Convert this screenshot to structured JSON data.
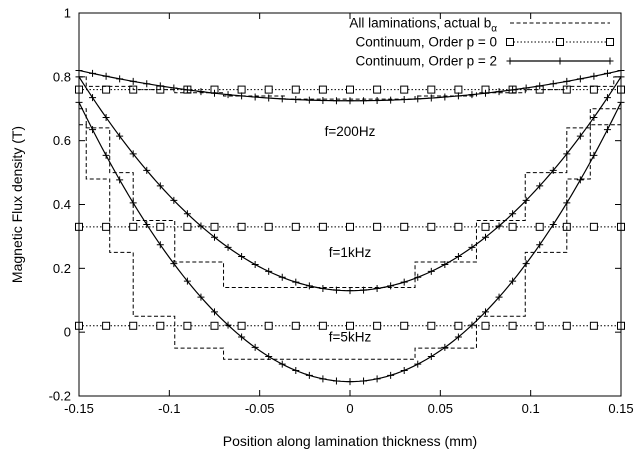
{
  "chart_data": {
    "type": "line",
    "xlabel": "Position along lamination thickness (mm)",
    "ylabel": "Magnetic Flux density (T)",
    "xlim": [
      -0.15,
      0.15
    ],
    "ylim": [
      -0.2,
      1.0
    ],
    "xticks": [
      "-0.15",
      "-0.1",
      "-0.05",
      "0",
      "0.05",
      "0.1",
      "0.15"
    ],
    "yticks": [
      "-0.2",
      "0",
      "0.2",
      "0.4",
      "0.6",
      "0.8",
      "1"
    ],
    "legend_position": "top-right",
    "legend": [
      {
        "label": "All laminations, actual b",
        "subscript": "α",
        "style": "dashed"
      },
      {
        "label": "Continuum, Order p = 0",
        "style": "dotted-square"
      },
      {
        "label": "Continuum, Order p = 2",
        "style": "solid-plus"
      }
    ],
    "annotations": [
      "f=200Hz",
      "f=1kHz",
      "f=5kHz"
    ],
    "cases": [
      {
        "annotation": "f=200Hz",
        "order0": 0.76,
        "order2": {
          "center": 0.725,
          "edge": 0.82
        },
        "actual": {
          "edges": [
            -0.15,
            -0.146,
            -0.12,
            -0.097,
            -0.07,
            -0.036,
            0.036,
            0.07,
            0.097,
            0.12,
            0.146,
            0.15
          ],
          "values": [
            0.8,
            0.77,
            0.76,
            0.75,
            0.74,
            0.73,
            0.74,
            0.75,
            0.76,
            0.77,
            0.8
          ]
        }
      },
      {
        "annotation": "f=1kHz",
        "order0": 0.33,
        "order2": {
          "center": 0.13,
          "edge": 0.8
        },
        "actual": {
          "edges": [
            -0.15,
            -0.146,
            -0.133,
            -0.12,
            -0.097,
            -0.07,
            -0.036,
            0.036,
            0.07,
            0.097,
            0.12,
            0.133,
            0.146,
            0.15
          ],
          "values": [
            0.7,
            0.64,
            0.5,
            0.35,
            0.22,
            0.14,
            0.14,
            0.22,
            0.35,
            0.5,
            0.64,
            0.7,
            0.7
          ]
        }
      },
      {
        "annotation": "f=5kHz",
        "order0": 0.02,
        "order2": {
          "center": -0.155,
          "edge": 0.72
        },
        "actual": {
          "edges": [
            -0.15,
            -0.146,
            -0.133,
            -0.12,
            -0.097,
            -0.07,
            -0.036,
            0.036,
            0.07,
            0.097,
            0.12,
            0.133,
            0.146,
            0.15
          ],
          "values": [
            0.65,
            0.48,
            0.25,
            0.05,
            -0.05,
            -0.085,
            -0.085,
            -0.05,
            0.05,
            0.25,
            0.48,
            0.65,
            0.65
          ]
        }
      }
    ]
  }
}
